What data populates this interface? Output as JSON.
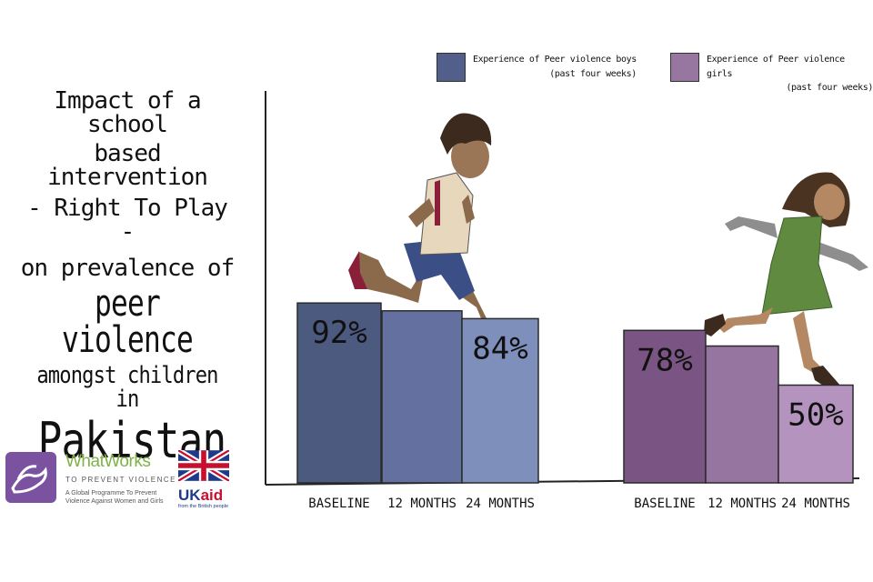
{
  "title": {
    "line1": "Impact of a school",
    "line2": "based intervention",
    "line3": "- Right To Play -",
    "line4": "on prevalence of",
    "line5": "peer violence",
    "line6": "amongst children in",
    "line7": "Pakistan"
  },
  "legend": {
    "boys": {
      "label": "Experience of Peer violence boys",
      "sub": "(past four weeks)",
      "color": "#525f8a"
    },
    "girls": {
      "label": "Experience of Peer violence girls",
      "sub": "(past four weeks)",
      "color": "#9777a0"
    }
  },
  "chart_data": {
    "type": "bar",
    "groups": [
      {
        "name": "boys",
        "categories": [
          "BASELINE",
          "12 MONTHS",
          "24 MONTHS"
        ],
        "values": [
          92,
          88,
          84
        ],
        "labels": [
          "92%",
          "",
          "84%"
        ],
        "colors": [
          "#4d5a80",
          "#6471a0",
          "#7f8fbb"
        ]
      },
      {
        "name": "girls",
        "categories": [
          "BASELINE",
          "12 MONTHS",
          "24 MONTHS"
        ],
        "values": [
          78,
          70,
          50
        ],
        "labels": [
          "78%",
          "",
          "50%"
        ],
        "colors": [
          "#7a5584",
          "#9675a0",
          "#b494be"
        ]
      }
    ],
    "xlabel": "",
    "ylabel": "",
    "grid": false
  },
  "logos": {
    "whatworks": {
      "name": "WhatWorks",
      "sub": "TO PREVENT VIOLENCE",
      "tagline": "A Global Programme To Prevent Violence Against Women and Girls",
      "color": "#7a52a0"
    },
    "ukaid": {
      "text_uk": "UK",
      "text_aid": "aid",
      "sub": "from the British people"
    }
  }
}
